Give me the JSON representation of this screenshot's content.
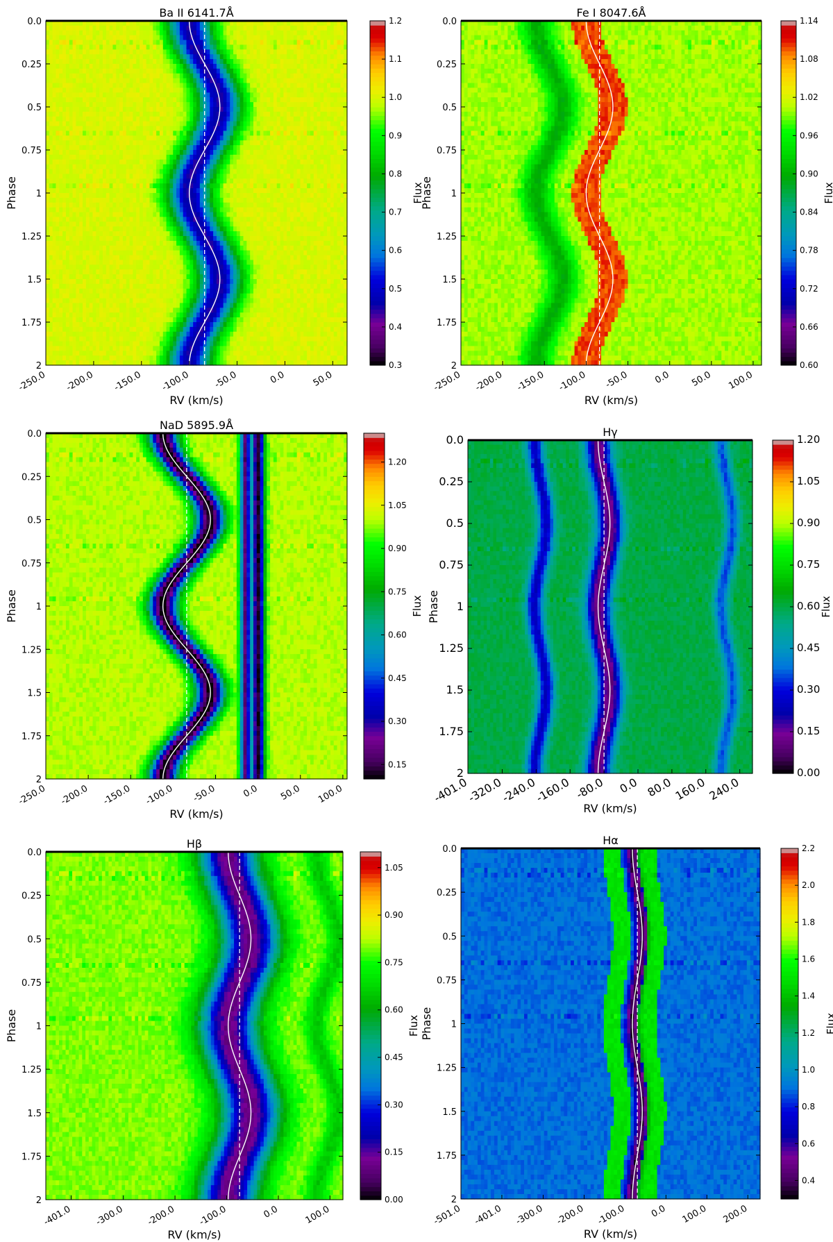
{
  "chart_data": [
    {
      "type": "heatmap",
      "title": "Ba II 6141.7Å",
      "xlabel": "RV (km/s)",
      "ylabel": "Phase",
      "xlim": [
        -250,
        65
      ],
      "ylim": [
        0,
        2
      ],
      "x_ticks": [
        -250,
        -200,
        -150,
        -100,
        -50,
        0,
        50
      ],
      "x_tick_labels": [
        "-250.0",
        "-200.0",
        "-150.0",
        "-100.0",
        "-50.0",
        "0.0",
        "50.0"
      ],
      "y_ticks": [
        0,
        0.25,
        0.5,
        0.75,
        1,
        1.25,
        1.5,
        1.75,
        2
      ],
      "y_tick_labels": [
        "0.0",
        "0.25",
        "0.5",
        "0.75",
        "1",
        "1.25",
        "1.5",
        "1.75",
        "2"
      ],
      "colorbar": {
        "label": "Flux",
        "min": 0.3,
        "max": 1.2,
        "ticks": [
          "0.3",
          "0.4",
          "0.5",
          "0.6",
          "0.7",
          "0.8",
          "0.9",
          "1.0",
          "1.1",
          "1.2"
        ]
      },
      "continuum_flux": 1.0,
      "systemic_velocity": -84,
      "semi_amplitude": 16,
      "phase_zero": 0.25,
      "absorption_lines": [
        {
          "offset": 0,
          "depth": 0.55,
          "width": 16
        }
      ]
    },
    {
      "type": "heatmap",
      "title": "Fe I 8047.6Å",
      "xlabel": "RV (km/s)",
      "ylabel": "Phase",
      "xlim": [
        -250,
        110
      ],
      "ylim": [
        0,
        2
      ],
      "x_ticks": [
        -250,
        -200,
        -150,
        -100,
        -50,
        0,
        50,
        100
      ],
      "x_tick_labels": [
        "-250.0",
        "-200.0",
        "-150.0",
        "-100.0",
        "-50.0",
        "0.0",
        "50.0",
        "100.0"
      ],
      "y_ticks": [
        0,
        0.25,
        0.5,
        0.75,
        1,
        1.25,
        1.5,
        1.75,
        2
      ],
      "y_tick_labels": [
        "0.0",
        "0.25",
        "0.5",
        "0.75",
        "1",
        "1.25",
        "1.5",
        "1.75",
        "2"
      ],
      "colorbar": {
        "label": "Flux",
        "min": 0.6,
        "max": 1.14,
        "ticks": [
          "0.60",
          "0.66",
          "0.72",
          "0.78",
          "0.84",
          "0.90",
          "0.96",
          "1.02",
          "1.08",
          "1.14"
        ]
      },
      "continuum_flux": 1.0,
      "systemic_velocity": -84,
      "semi_amplitude": 16,
      "phase_zero": 0.25,
      "absorption_lines": [
        {
          "offset": -60,
          "depth": 0.1,
          "width": 12
        }
      ],
      "emission_bands": [
        {
          "center": -84,
          "half_width": 17,
          "flux": 1.1
        }
      ]
    },
    {
      "type": "heatmap",
      "title": "NaD 5895.9Å",
      "xlabel": "RV (km/s)",
      "ylabel": "Phase",
      "xlim": [
        -250,
        105
      ],
      "ylim": [
        0,
        2
      ],
      "x_ticks": [
        -250,
        -200,
        -150,
        -100,
        -50,
        0,
        50,
        100
      ],
      "x_tick_labels": [
        "-250.0",
        "-200.0",
        "-150.0",
        "-100.0",
        "-50.0",
        "0.0",
        "50.0",
        "100.0"
      ],
      "y_ticks": [
        0,
        0.25,
        0.5,
        0.75,
        1,
        1.25,
        1.5,
        1.75,
        2
      ],
      "y_tick_labels": [
        "0.0",
        "0.25",
        "0.5",
        "0.75",
        "1",
        "1.25",
        "1.5",
        "1.75",
        "2"
      ],
      "colorbar": {
        "label": "Flux",
        "min": 0.1,
        "max": 1.3,
        "ticks": [
          "0.15",
          "0.30",
          "0.45",
          "0.60",
          "0.75",
          "0.90",
          "1.05",
          "1.20"
        ]
      },
      "continuum_flux": 1.0,
      "systemic_velocity": -84,
      "semi_amplitude": 28,
      "phase_zero": 0.25,
      "absorption_lines": [
        {
          "offset": 0,
          "depth": 0.9,
          "width": 12
        }
      ],
      "stationary_lines": [
        {
          "center": -15,
          "depth": 0.8,
          "width": 4
        },
        {
          "center": 0,
          "depth": 0.88,
          "width": 5
        }
      ]
    },
    {
      "type": "heatmap",
      "title": "Hγ",
      "xlabel": "RV (km/s)",
      "ylabel": "Phase",
      "xlim": [
        -401,
        270
      ],
      "ylim": [
        0,
        2
      ],
      "x_ticks": [
        -401,
        -320,
        -240,
        -160,
        -80,
        0,
        80,
        160,
        240
      ],
      "x_tick_labels": [
        "-401.0",
        "-320.0",
        "-240.0",
        "-160.0",
        "-80.0",
        "0.0",
        "80.0",
        "160.0",
        "240.0"
      ],
      "y_ticks": [
        0,
        0.25,
        0.5,
        0.75,
        1,
        1.25,
        1.5,
        1.75,
        2
      ],
      "y_tick_labels": [
        "0.0",
        "0.25",
        "0.5",
        "0.75",
        "1",
        "1.25",
        "1.5",
        "1.75",
        "2"
      ],
      "colorbar": {
        "label": "Flux",
        "min": 0.0,
        "max": 1.2,
        "ticks": [
          "0.00",
          "0.15",
          "0.30",
          "0.45",
          "0.60",
          "0.75",
          "0.90",
          "1.05",
          "1.20"
        ]
      },
      "continuum_flux": 0.6,
      "systemic_velocity": -80,
      "semi_amplitude": 14,
      "phase_zero": 0.25,
      "absorption_lines": [
        {
          "offset": 0,
          "depth": 0.5,
          "width": 20
        },
        {
          "offset": -150,
          "depth": 0.35,
          "width": 14
        },
        {
          "offset": 290,
          "depth": 0.25,
          "width": 12
        }
      ]
    },
    {
      "type": "heatmap",
      "title": "Hβ",
      "xlabel": "RV (km/s)",
      "ylabel": "Phase",
      "xlim": [
        -450,
        125
      ],
      "ylim": [
        0,
        2
      ],
      "x_ticks": [
        -401,
        -300,
        -200,
        -100,
        0,
        100
      ],
      "x_tick_labels": [
        "-401.0",
        "-300.0",
        "-200.0",
        "-100.0",
        "0.0",
        "100.0"
      ],
      "y_ticks": [
        0,
        0.25,
        0.5,
        0.75,
        1,
        1.25,
        1.5,
        1.75,
        2
      ],
      "y_tick_labels": [
        "0.0",
        "0.25",
        "0.5",
        "0.75",
        "1",
        "1.25",
        "1.5",
        "1.75",
        "2"
      ],
      "colorbar": {
        "label": "Flux",
        "min": 0.0,
        "max": 1.1,
        "ticks": [
          "0.00",
          "0.15",
          "0.30",
          "0.45",
          "0.60",
          "0.75",
          "0.90",
          "1.05"
        ]
      },
      "continuum_flux": 0.8,
      "systemic_velocity": -75,
      "semi_amplitude": 22,
      "phase_zero": 0.25,
      "absorption_lines": [
        {
          "offset": 0,
          "depth": 0.7,
          "width": 40
        },
        {
          "offset": 170,
          "depth": 0.15,
          "width": 15
        }
      ]
    },
    {
      "type": "heatmap",
      "title": "Hα",
      "xlabel": "RV (km/s)",
      "ylabel": "Phase",
      "xlim": [
        -501,
        230
      ],
      "ylim": [
        0,
        2
      ],
      "x_ticks": [
        -501,
        -401,
        -300,
        -200,
        -100,
        0,
        100,
        200
      ],
      "x_tick_labels": [
        "-501.0",
        "-401.0",
        "-300.0",
        "-200.0",
        "-100.0",
        "0.0",
        "100.0",
        "200.0"
      ],
      "y_ticks": [
        0,
        0.25,
        0.5,
        0.75,
        1,
        1.25,
        1.5,
        1.75,
        2
      ],
      "y_tick_labels": [
        "0.0",
        "0.25",
        "0.5",
        "0.75",
        "1",
        "1.25",
        "1.5",
        "1.75",
        "2"
      ],
      "colorbar": {
        "label": "Flux",
        "min": 0.3,
        "max": 2.2,
        "ticks": [
          "0.4",
          "0.6",
          "0.8",
          "1.0",
          "1.2",
          "1.4",
          "1.6",
          "1.8",
          "2.0",
          "2.2"
        ]
      },
      "continuum_flux": 0.9,
      "systemic_velocity": -70,
      "semi_amplitude": 12,
      "phase_zero": 0.25,
      "absorption_lines": [
        {
          "offset": 0,
          "depth": 0.55,
          "width": 10
        }
      ],
      "emission_bands": [
        {
          "center": -120,
          "half_width": 22,
          "flux": 1.5
        },
        {
          "center": -35,
          "half_width": 22,
          "flux": 1.5
        }
      ]
    }
  ]
}
